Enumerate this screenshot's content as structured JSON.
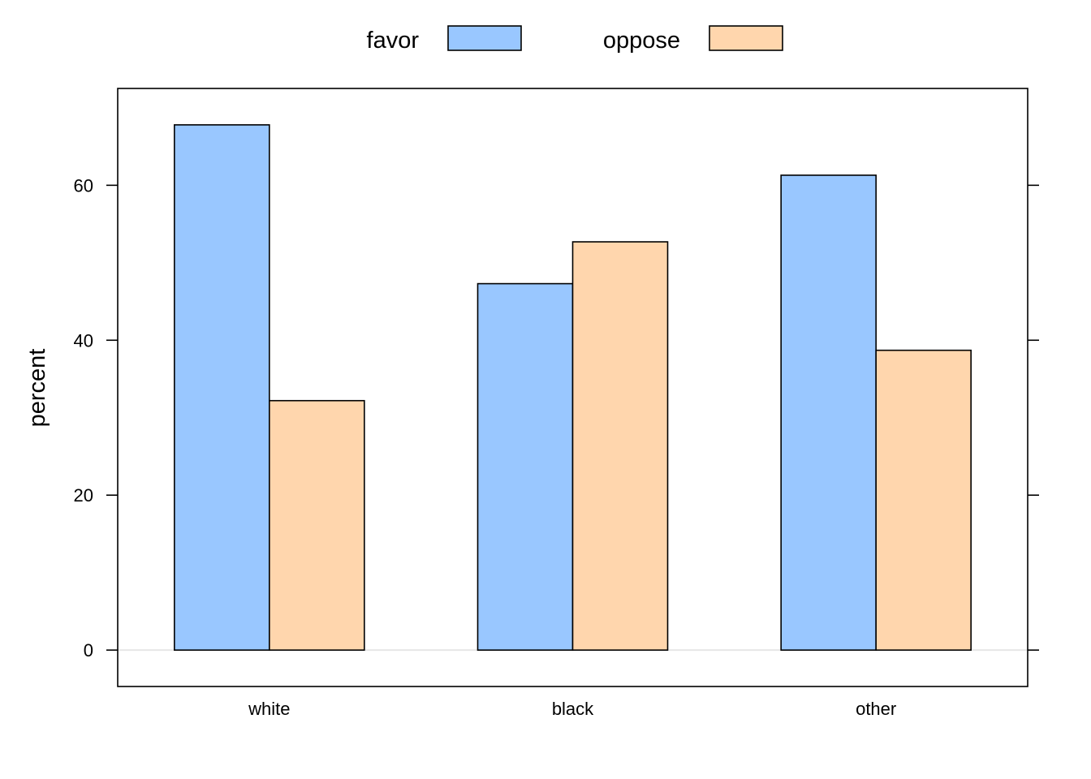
{
  "chart_data": {
    "type": "bar",
    "categories": [
      "white",
      "black",
      "other"
    ],
    "series": [
      {
        "name": "favor",
        "values": [
          67.8,
          47.3,
          61.3
        ],
        "color": "#99c7ff"
      },
      {
        "name": "oppose",
        "values": [
          32.2,
          52.7,
          38.7
        ],
        "color": "#ffd6ad"
      }
    ],
    "xlabel": "",
    "ylabel": "percent",
    "ylim": [
      -4.7,
      72.5
    ],
    "yticks": [
      "0",
      "20",
      "40",
      "60"
    ],
    "grid": false,
    "baseline_color": "#e6e6e6",
    "legend_position": "top"
  }
}
